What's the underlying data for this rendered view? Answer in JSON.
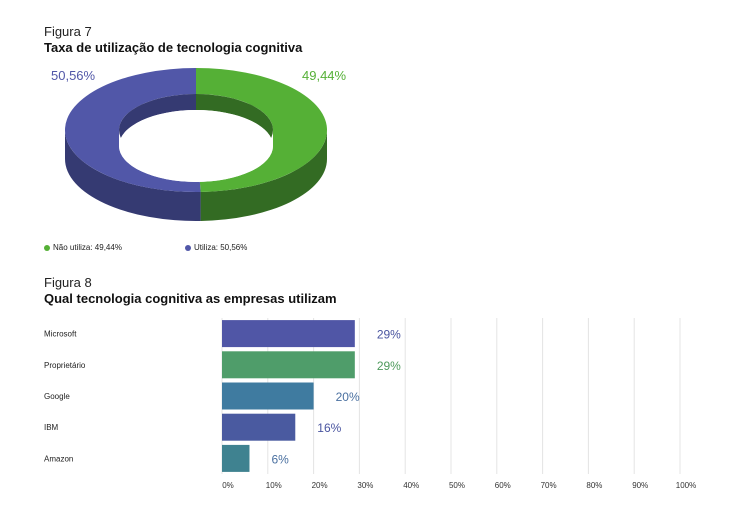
{
  "figure7": {
    "label": "Figura 7",
    "title": "Taxa de utilização de tecnologia cognitiva"
  },
  "figure8": {
    "label": "Figura 8",
    "title": "Qual tecnologia cognitiva as empresas utilizam"
  },
  "chart_data": [
    {
      "type": "pie",
      "variant": "3d-donut",
      "title": "Taxa de utilização de tecnologia cognitiva",
      "slices": [
        {
          "name": "Não utiliza",
          "value": 49.44,
          "label": "49,44%",
          "legend": "Não utiliza: 49,44%",
          "color": "#55b036",
          "side_color": "#336b23"
        },
        {
          "name": "Utiliza",
          "value": 50.56,
          "label": "50,56%",
          "legend": "Utiliza: 50,56%",
          "color": "#5157a8",
          "side_color": "#353a72"
        }
      ],
      "legend_position": "bottom"
    },
    {
      "type": "bar",
      "orientation": "horizontal",
      "title": "Qual tecnologia cognitiva as empresas utilizam",
      "categories": [
        "Microsoft",
        "Proprietário",
        "Google",
        "IBM",
        "Amazon"
      ],
      "values": [
        29,
        29,
        20,
        16,
        6
      ],
      "value_labels": [
        "29%",
        "29%",
        "20%",
        "16%",
        "6%"
      ],
      "colors": [
        "#5056a6",
        "#4f9d6a",
        "#3f7ba0",
        "#4a5aa0",
        "#3f8290"
      ],
      "label_colors": [
        "#4a55a0",
        "#4e9a5c",
        "#4a70a0",
        "#4a55a0",
        "#4a70a0"
      ],
      "xlim": [
        0,
        100
      ],
      "x_ticks": [
        "0%",
        "10%",
        "20%",
        "30%",
        "40%",
        "50%",
        "60%",
        "70%",
        "80%",
        "90%",
        "100%"
      ],
      "grid": true
    }
  ]
}
